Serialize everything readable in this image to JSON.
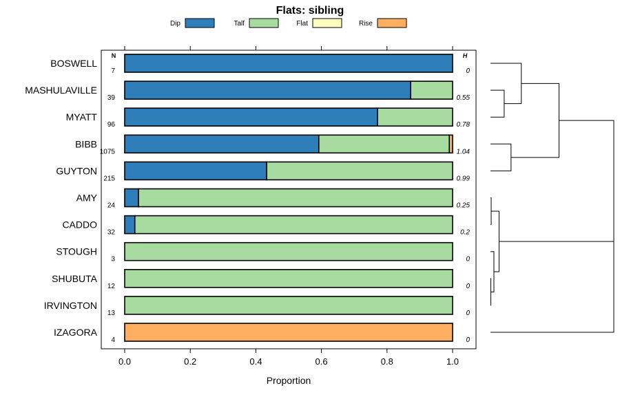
{
  "chart_data": {
    "type": "bar",
    "orientation": "horizontal",
    "stacked": true,
    "title": "Flats: sibling",
    "xlabel": "Proportion",
    "xlim": [
      0,
      1
    ],
    "xticks": [
      0,
      0.2,
      0.4,
      0.6,
      0.8,
      1
    ],
    "xtick_labels": [
      "0.0",
      "0.2",
      "0.4",
      "0.6",
      "0.8",
      "1.0"
    ],
    "n_header": "N",
    "h_header": "H",
    "legend_position": "top",
    "series": [
      {
        "name": "Dip",
        "color": "#2e7fb9"
      },
      {
        "name": "Talf",
        "color": "#a8dba0"
      },
      {
        "name": "Flat",
        "color": "#ffffbf"
      },
      {
        "name": "Rise",
        "color": "#fdae61"
      }
    ],
    "rows": [
      {
        "label": "BOSWELL",
        "n": "7",
        "h": "0",
        "values": [
          1.0,
          0.0,
          0.0,
          0.0
        ]
      },
      {
        "label": "MASHULAVILLE",
        "n": "39",
        "h": "0.55",
        "values": [
          0.872,
          0.128,
          0.0,
          0.0
        ]
      },
      {
        "label": "MYATT",
        "n": "96",
        "h": "0.78",
        "values": [
          0.771,
          0.229,
          0.0,
          0.0
        ]
      },
      {
        "label": "BIBB",
        "n": "1075",
        "h": "1.04",
        "values": [
          0.592,
          0.398,
          0.0,
          0.01
        ]
      },
      {
        "label": "GUYTON",
        "n": "215",
        "h": "0.99",
        "values": [
          0.433,
          0.567,
          0.0,
          0.0
        ]
      },
      {
        "label": "AMY",
        "n": "24",
        "h": "0.25",
        "values": [
          0.042,
          0.958,
          0.0,
          0.0
        ]
      },
      {
        "label": "CADDO",
        "n": "32",
        "h": "0.2",
        "values": [
          0.031,
          0.969,
          0.0,
          0.0
        ]
      },
      {
        "label": "STOUGH",
        "n": "3",
        "h": "0",
        "values": [
          0.0,
          1.0,
          0.0,
          0.0
        ]
      },
      {
        "label": "SHUBUTA",
        "n": "12",
        "h": "0",
        "values": [
          0.0,
          1.0,
          0.0,
          0.0
        ]
      },
      {
        "label": "IRVINGTON",
        "n": "13",
        "h": "0",
        "values": [
          0.0,
          1.0,
          0.0,
          0.0
        ]
      },
      {
        "label": "IZAGORA",
        "n": "4",
        "h": "0",
        "values": [
          0.0,
          0.0,
          0.0,
          1.0
        ]
      }
    ],
    "dendrogram": {
      "description": "hierarchical clustering of rows shown at right, no axis labels",
      "merges": [
        {
          "a": "leaf:MASHULAVILLE",
          "b": "leaf:MYATT",
          "height": 0.04
        },
        {
          "a": "leaf:BOSWELL",
          "b": "node:0",
          "height": 0.09
        },
        {
          "a": "leaf:BIBB",
          "b": "leaf:GUYTON",
          "height": 0.06
        },
        {
          "a": "node:1",
          "b": "node:2",
          "height": 0.2
        },
        {
          "a": "leaf:AMY",
          "b": "leaf:CADDO",
          "height": 0.002
        },
        {
          "a": "leaf:SHUBUTA",
          "b": "leaf:IRVINGTON",
          "height": 0.001
        },
        {
          "a": "leaf:STOUGH",
          "b": "node:5",
          "height": 0.01
        },
        {
          "a": "node:4",
          "b": "node:6",
          "height": 0.025
        },
        {
          "a": "node:3",
          "b": "node:7",
          "height": 0.36
        },
        {
          "a": "node:8",
          "b": "leaf:IZAGORA",
          "height": 0.36
        }
      ]
    }
  }
}
